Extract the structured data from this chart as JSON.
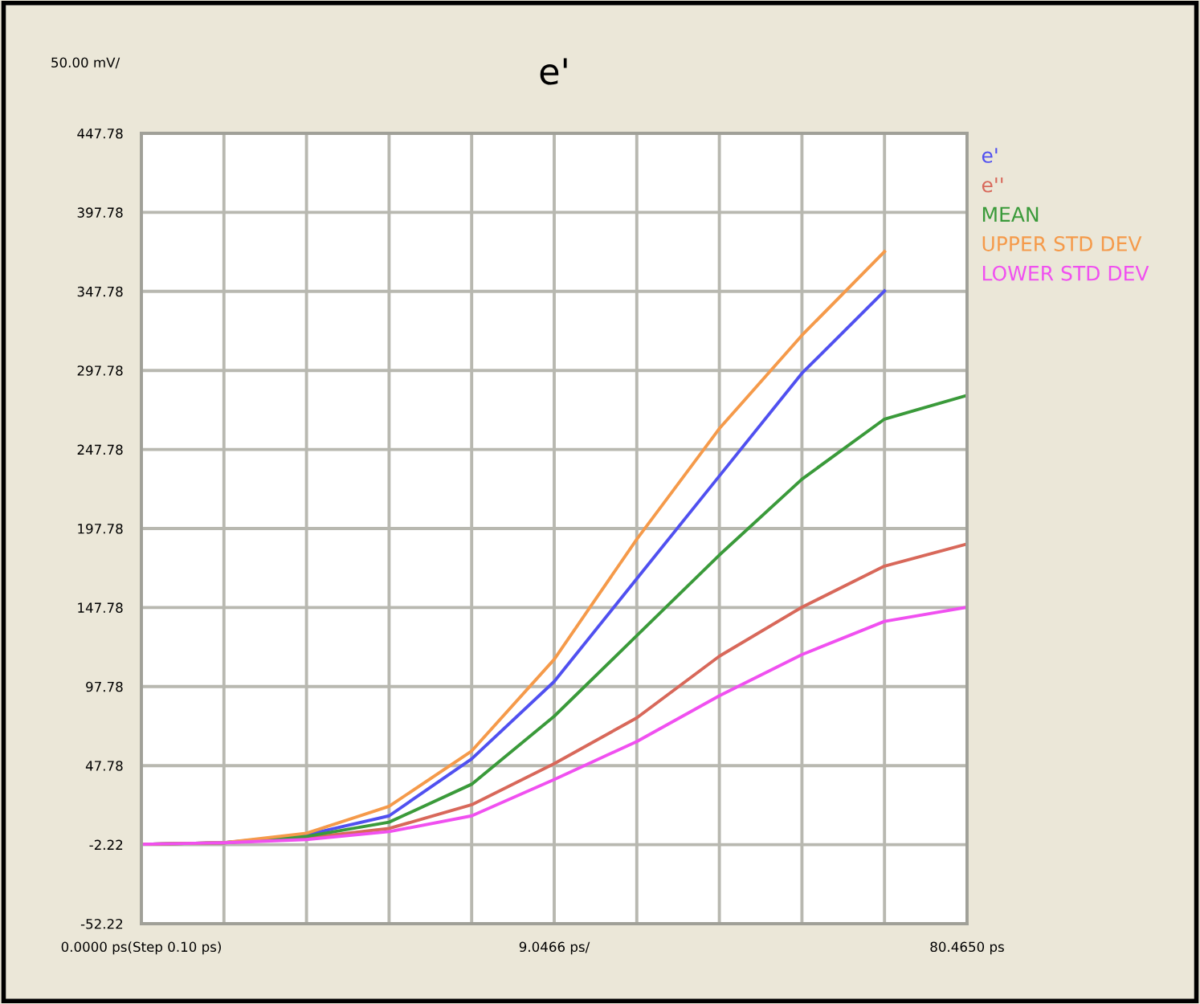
{
  "chart_data": {
    "type": "line",
    "title": "e'",
    "ylabel": "50.00 mV/",
    "categories": [
      "0.0000 ps(Step 0.10 ps)",
      null,
      null,
      null,
      null,
      "9.0466 ps/",
      null,
      null,
      null,
      null,
      "80.4650 ps"
    ],
    "series": [
      {
        "name": "e'",
        "color": "#5050f0",
        "values": [
          -2,
          -1,
          4,
          16,
          52,
          101,
          166,
          231,
          296,
          348,
          null
        ]
      },
      {
        "name": "e''",
        "color": "#d8685a",
        "values": [
          -2,
          -1,
          2,
          8,
          23,
          49,
          78,
          117,
          148,
          174,
          188
        ]
      },
      {
        "name": "MEAN",
        "color": "#3a9a3a",
        "values": [
          -2,
          -1,
          3,
          12,
          36,
          79,
          130,
          181,
          229,
          267,
          282
        ]
      },
      {
        "name": "UPPER STD DEV",
        "color": "#f59a4a",
        "values": [
          -2,
          -1,
          5,
          22,
          57,
          115,
          191,
          261,
          320,
          373,
          null
        ]
      },
      {
        "name": "LOWER STD DEV",
        "color": "#f050f0",
        "values": [
          -2,
          -1,
          1,
          6,
          16,
          39,
          63,
          92,
          118,
          139,
          148
        ]
      }
    ],
    "ylim": [
      -52.22,
      447.78
    ],
    "yticks": [
      -52.22,
      -2.22,
      47.78,
      97.78,
      147.78,
      197.78,
      247.78,
      297.78,
      347.78,
      397.78,
      447.78
    ],
    "grid": true,
    "legend": "top right",
    "marker": "none",
    "line_style": "solid"
  }
}
